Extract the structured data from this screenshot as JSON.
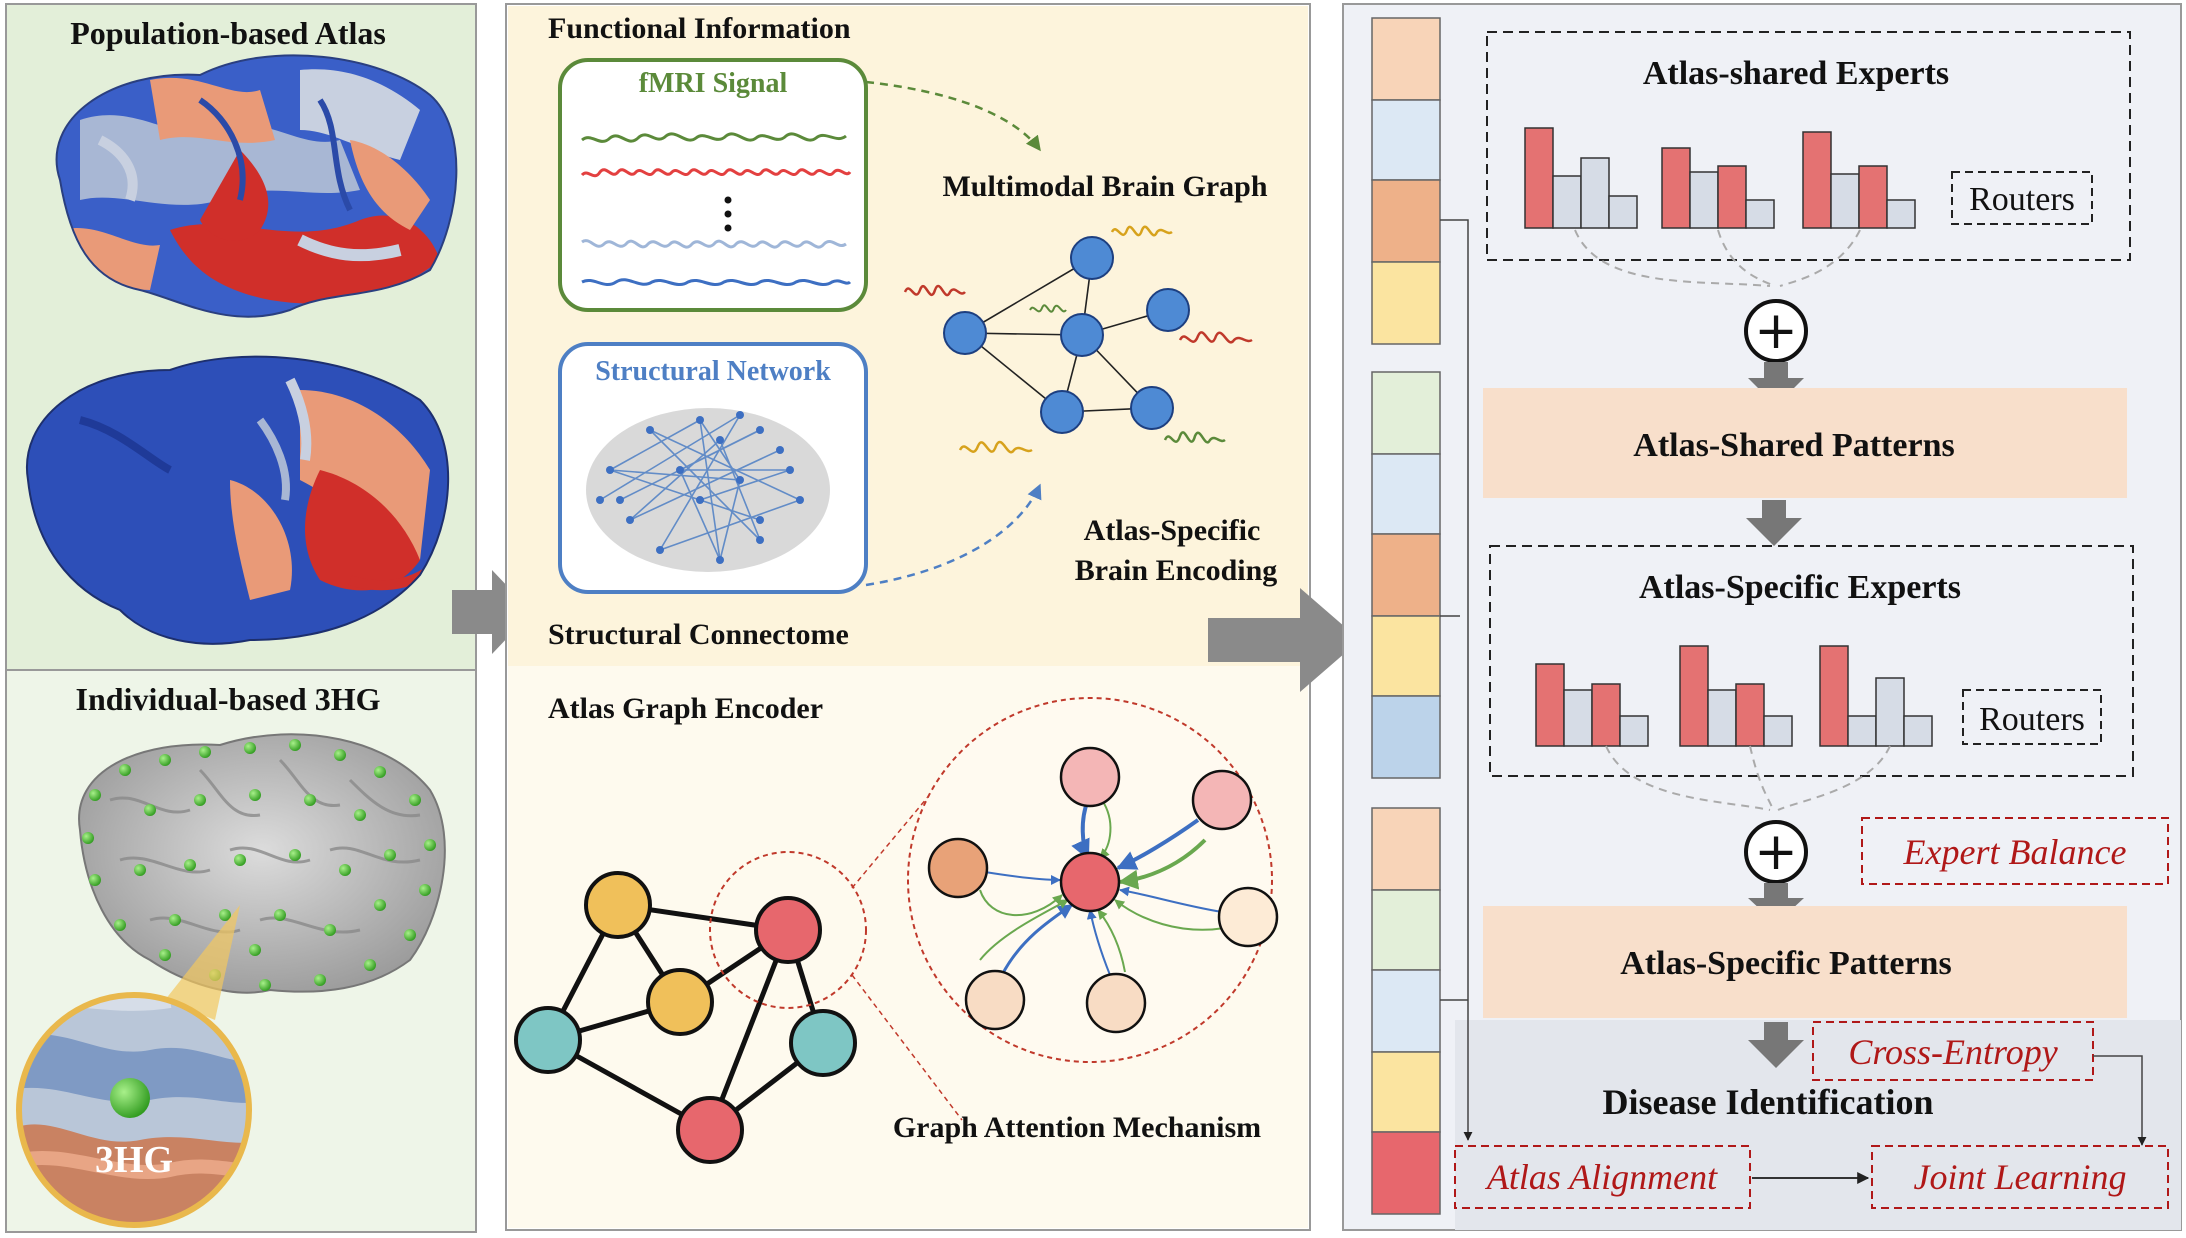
{
  "left_panel": {
    "title_population": "Population-based Atlas",
    "title_individual": "Individual-based 3HG",
    "zoom_label": "3HG"
  },
  "middle_panel": {
    "functional_information": "Functional Information",
    "fmri_signal": "fMRI Signal",
    "structural_network": "Structural Network",
    "structural_connectome": "Structural Connectome",
    "multimodal_brain_graph": "Multimodal Brain Graph",
    "atlas_specific_brain_encoding_line1": "Atlas-Specific",
    "atlas_specific_brain_encoding_line2": "Brain Encoding",
    "atlas_graph_encoder": "Atlas Graph Encoder",
    "graph_attention_mechanism": "Graph Attention Mechanism"
  },
  "right_panel": {
    "atlas_shared_experts": "Atlas-shared Experts",
    "routers_1": "Routers",
    "atlas_shared_patterns": "Atlas-Shared Patterns",
    "atlas_specific_experts": "Atlas-Specific Experts",
    "routers_2": "Routers",
    "expert_balance": "Expert Balance",
    "atlas_specific_patterns": "Atlas-Specific Patterns",
    "cross_entropy": "Cross-Entropy",
    "disease_identification": "Disease Identification",
    "atlas_alignment": "Atlas Alignment",
    "joint_learning": "Joint Learning",
    "plus_symbol": "+"
  },
  "colors": {
    "panel_green": "#e3efd9",
    "panel_green_light": "#eef5e8",
    "panel_cream": "#fdf4dc",
    "panel_right": "#eff1f6",
    "pattern_fill": "#f8dfcb",
    "bar_red": "#e47272",
    "bar_grey": "#d6dce6",
    "node_yellow": "#f0c05a",
    "node_teal": "#7ec6c4",
    "node_red": "#e7676d",
    "accent_red": "#b01818"
  }
}
